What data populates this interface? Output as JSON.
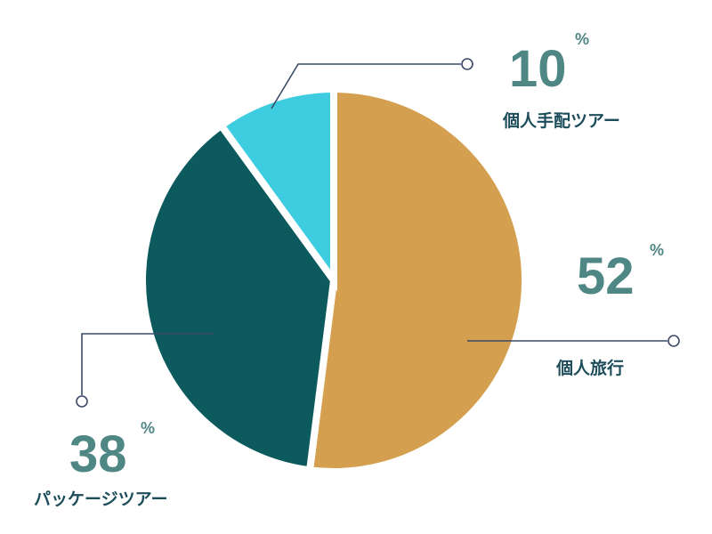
{
  "chart_data": {
    "type": "pie",
    "categories": [
      "個人旅行",
      "パッケージツアー",
      "個人手配ツアー"
    ],
    "values": [
      52,
      38,
      10
    ],
    "unit": "%",
    "colors": [
      "#d4a04f",
      "#0c5a5d",
      "#3ecde0"
    ]
  }
}
